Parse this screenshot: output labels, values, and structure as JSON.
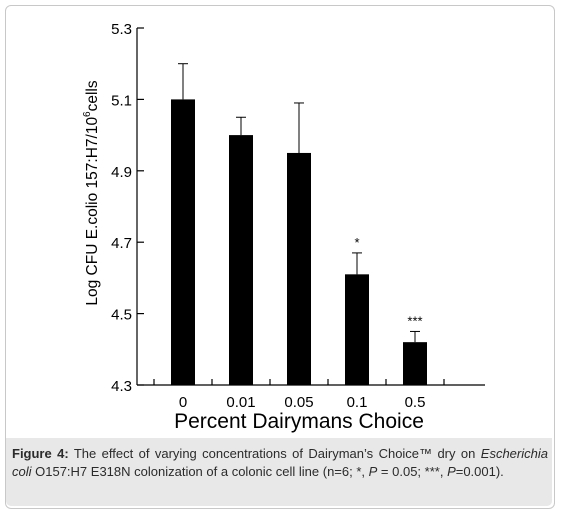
{
  "chart_data": {
    "type": "bar",
    "categories": [
      "0",
      "0.01",
      "0.05",
      "0.1",
      "0.5"
    ],
    "values": [
      5.1,
      5.0,
      4.95,
      4.61,
      4.42
    ],
    "errors": [
      0.1,
      0.05,
      0.14,
      0.06,
      0.03
    ],
    "significance": [
      "",
      "",
      "",
      "*",
      "***"
    ],
    "ylabel": "Log CFU E.colio 157:H7/10",
    "ylabel_sup": "6",
    "ylabel_suffix": "cells",
    "xlabel": "Percent Dairymans Choice",
    "ylim": [
      4.3,
      5.3
    ],
    "yticks": [
      "4.3",
      "4.5",
      "4.7",
      "4.9",
      "5.1",
      "5.3"
    ],
    "bar_color": "#000000",
    "grid": false
  },
  "caption": {
    "label": "Figure 4:",
    "t1": " The effect of varying concentrations of Dairyman’s Choice™ dry on ",
    "organism": "Escherichia coli",
    "t2": " O157:H7 E318N colonization of a colonic cell line (n=6; *, ",
    "p1": "P",
    "t3": " = 0.05; ***, ",
    "p2": "P",
    "t4": "=0.001)."
  }
}
